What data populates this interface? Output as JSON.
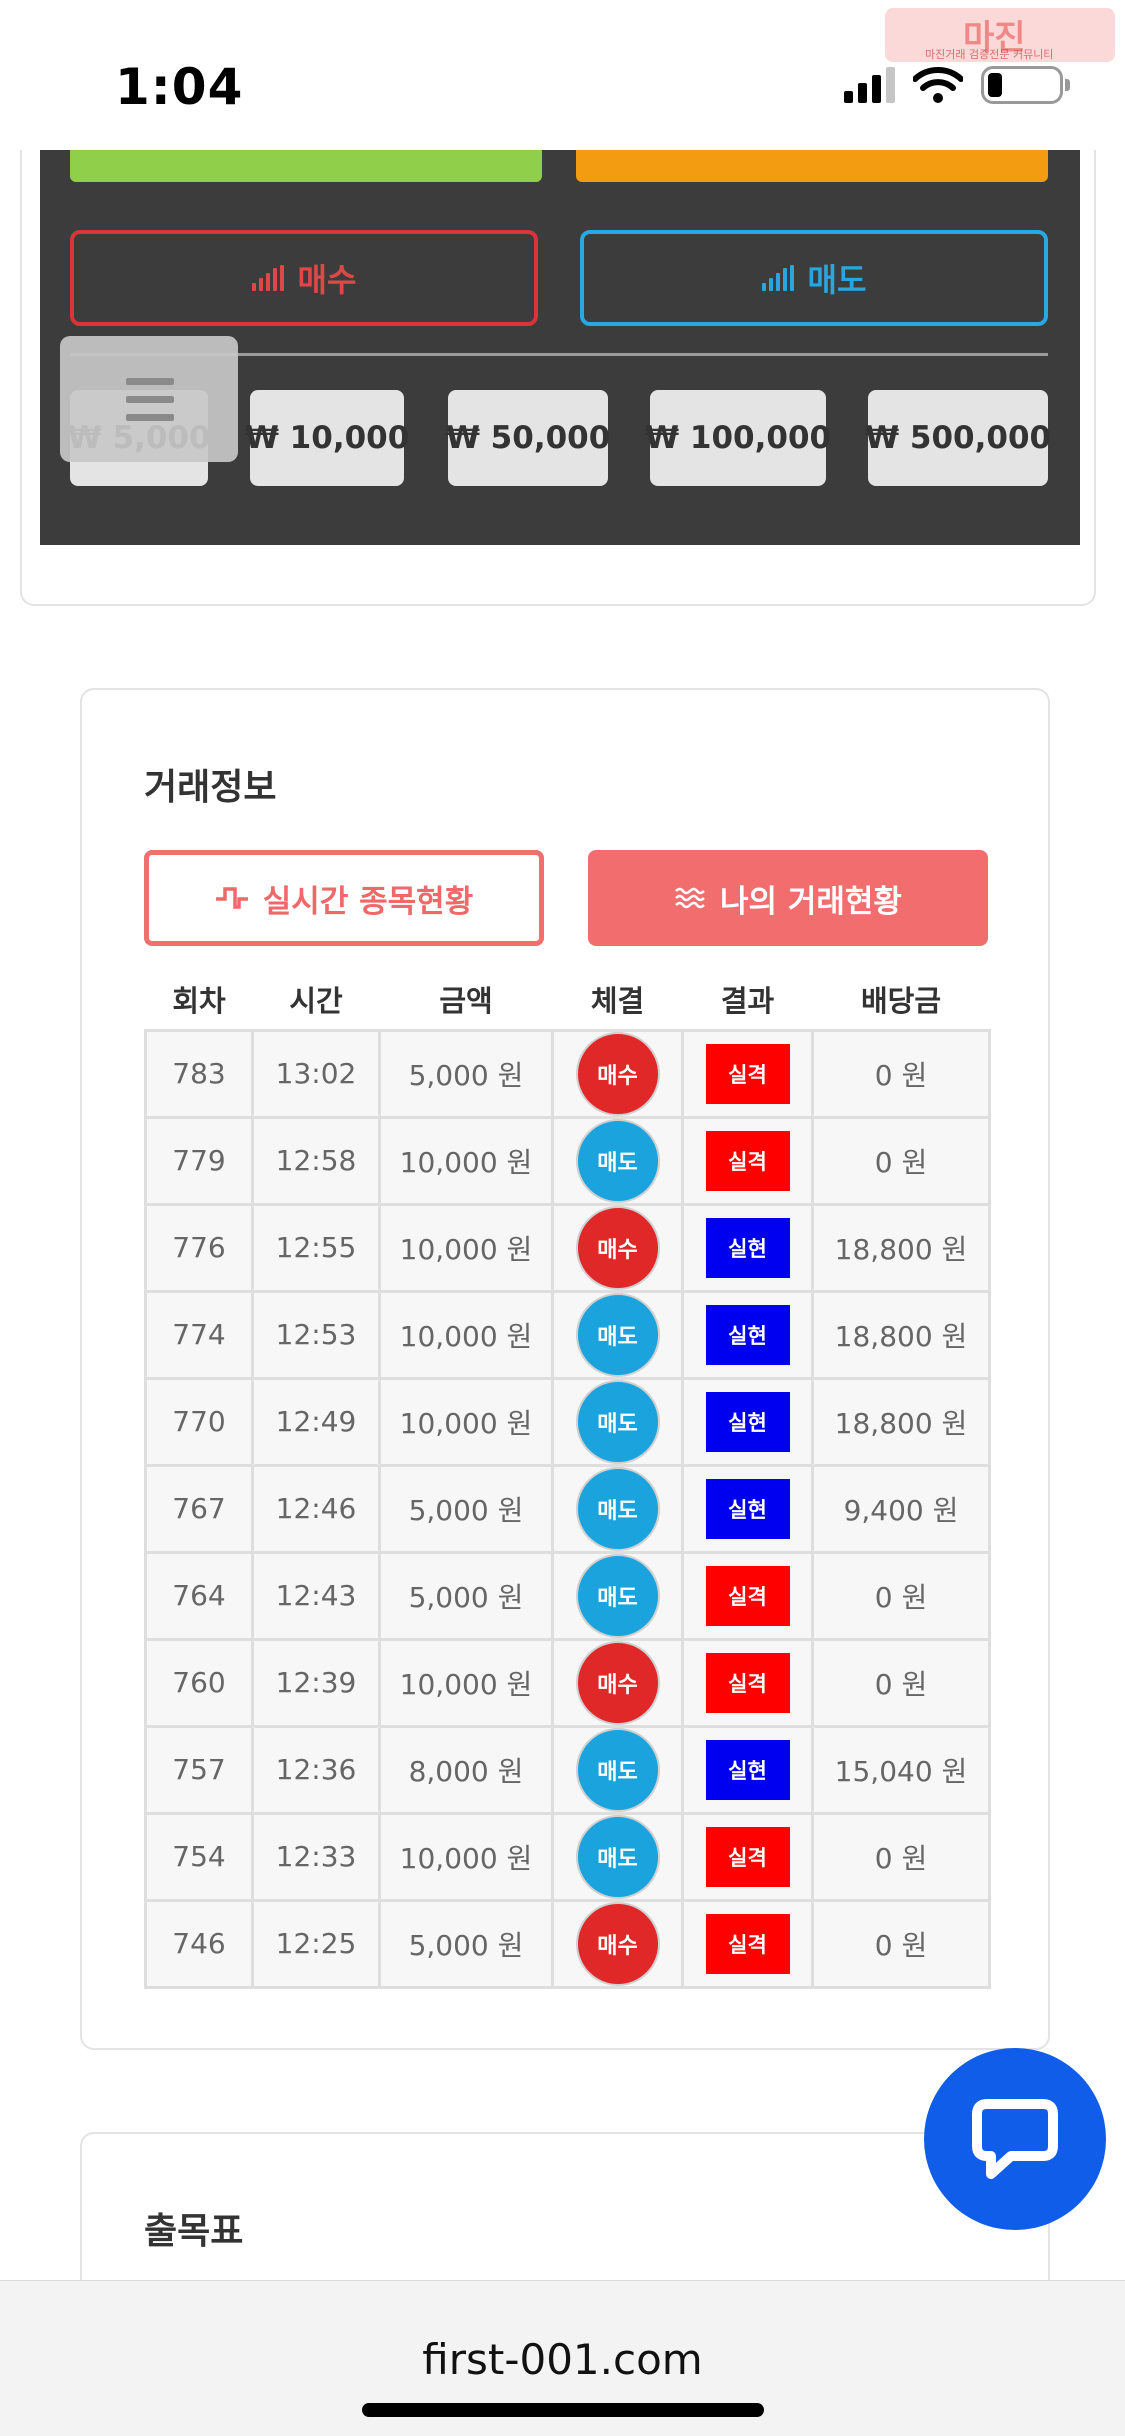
{
  "status_bar": {
    "time": "1:04",
    "watermark_title": "마진",
    "watermark_subtitle": "마진거래 검증전문 커뮤니티"
  },
  "trade_panel": {
    "buy_label": "매수",
    "sell_label": "매도",
    "amounts": [
      "₩ 5,000",
      "₩ 10,000",
      "₩ 50,000",
      "₩ 100,000",
      "₩ 500,000"
    ],
    "colors": {
      "buy": "#d9343a",
      "sell": "#27a9e1",
      "panel": "#3c3c3c"
    }
  },
  "trade_info": {
    "title": "거래정보",
    "tab_live": "실시간 종목현황",
    "tab_mine": "나의 거래현황",
    "headers": [
      "회차",
      "시간",
      "금액",
      "체결",
      "결과",
      "배당금"
    ],
    "rows": [
      {
        "round": "783",
        "time": "13:02",
        "amount": "5,000 원",
        "side": "매수",
        "result": "실격",
        "payout": "0 원"
      },
      {
        "round": "779",
        "time": "12:58",
        "amount": "10,000 원",
        "side": "매도",
        "result": "실격",
        "payout": "0 원"
      },
      {
        "round": "776",
        "time": "12:55",
        "amount": "10,000 원",
        "side": "매수",
        "result": "실현",
        "payout": "18,800 원"
      },
      {
        "round": "774",
        "time": "12:53",
        "amount": "10,000 원",
        "side": "매도",
        "result": "실현",
        "payout": "18,800 원"
      },
      {
        "round": "770",
        "time": "12:49",
        "amount": "10,000 원",
        "side": "매도",
        "result": "실현",
        "payout": "18,800 원"
      },
      {
        "round": "767",
        "time": "12:46",
        "amount": "5,000 원",
        "side": "매도",
        "result": "실현",
        "payout": "9,400 원"
      },
      {
        "round": "764",
        "time": "12:43",
        "amount": "5,000 원",
        "side": "매도",
        "result": "실격",
        "payout": "0 원"
      },
      {
        "round": "760",
        "time": "12:39",
        "amount": "10,000 원",
        "side": "매수",
        "result": "실격",
        "payout": "0 원"
      },
      {
        "round": "757",
        "time": "12:36",
        "amount": "8,000 원",
        "side": "매도",
        "result": "실현",
        "payout": "15,040 원"
      },
      {
        "round": "754",
        "time": "12:33",
        "amount": "10,000 원",
        "side": "매도",
        "result": "실격",
        "payout": "0 원"
      },
      {
        "round": "746",
        "time": "12:25",
        "amount": "5,000 원",
        "side": "매수",
        "result": "실격",
        "payout": "0 원"
      }
    ],
    "colors": {
      "buy_circle": "#e02828",
      "sell_circle": "#1aa3dd",
      "fail": "#ff0000",
      "win": "#0000f0"
    }
  },
  "next_section": {
    "title": "출목표"
  },
  "browser": {
    "url": "first-001.com"
  }
}
